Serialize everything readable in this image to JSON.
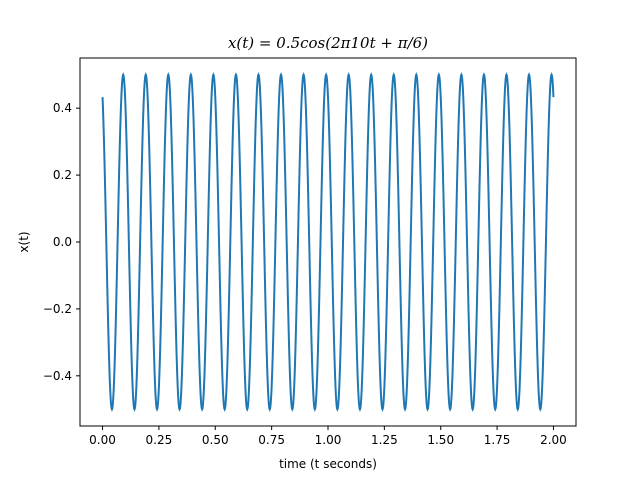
{
  "chart_data": {
    "type": "line",
    "title": "x(t) = 0.5cos(2π10t + π/6)",
    "xlabel": "time (t seconds)",
    "ylabel": "x(t)",
    "xlim": [
      -0.1,
      2.1
    ],
    "ylim": [
      -0.55,
      0.55
    ],
    "xticks": [
      "0.00",
      "0.25",
      "0.50",
      "0.75",
      "1.00",
      "1.25",
      "1.50",
      "1.75",
      "2.00"
    ],
    "xtick_values": [
      0.0,
      0.25,
      0.5,
      0.75,
      1.0,
      1.25,
      1.5,
      1.75,
      2.0
    ],
    "yticks": [
      "−0.4",
      "−0.2",
      "0.0",
      "0.2",
      "0.4"
    ],
    "ytick_values": [
      -0.4,
      -0.2,
      0.0,
      0.2,
      0.4
    ],
    "grid": false,
    "series": [
      {
        "amplitude": 0.5,
        "frequency_hz": 10,
        "phase_rad": 0.5235987755982988,
        "t_start": 0.0,
        "t_end": 2.0,
        "color": "#1f77b4"
      }
    ]
  }
}
